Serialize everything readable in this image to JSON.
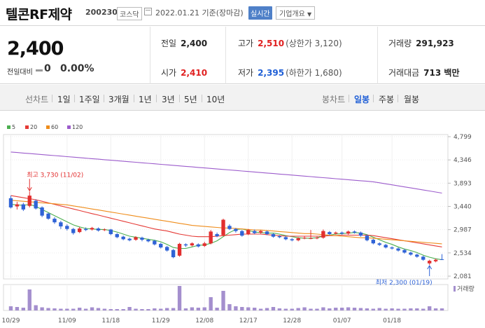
{
  "header": {
    "stock_name": "텔콘RF제약",
    "stock_code": "200230",
    "market": "코스닥",
    "date_text": "2022.01.21 기준(장마감)",
    "realtime_label": "실시간",
    "company_info_label": "기업개요"
  },
  "summary": {
    "current_price": "2,400",
    "change_label": "전일대비",
    "change_value": "0",
    "change_pct": "0.00%",
    "prev_label": "전일",
    "prev_value": "2,400",
    "high_label": "고가",
    "high_value": "2,510",
    "upper_limit": "(상한가 3,120)",
    "volume_label": "거래량",
    "volume_value": "291,923",
    "open_label": "시가",
    "open_value": "2,410",
    "low_label": "저가",
    "low_value": "2,395",
    "lower_limit": "(하한가 1,680)",
    "amount_label": "거래대금",
    "amount_value": "713 백만"
  },
  "tabs": {
    "line_chart": "선차트",
    "periods": [
      "1일",
      "1주일",
      "3개월",
      "1년",
      "3년",
      "5년",
      "10년"
    ],
    "candle_chart": "봉차트",
    "candle_types": [
      "일봉",
      "주봉",
      "월봉"
    ],
    "active_candle": "일봉"
  },
  "chart_data": {
    "type": "candlestick",
    "legend": [
      {
        "name": "5",
        "color": "#4caf50"
      },
      {
        "name": "20",
        "color": "#e53935"
      },
      {
        "name": "60",
        "color": "#ef8c1a"
      },
      {
        "name": "120",
        "color": "#9c5ccc"
      }
    ],
    "yticks": [
      "4,799",
      "4,346",
      "3,893",
      "3,440",
      "2,987",
      "2,534",
      "2,081"
    ],
    "ylim": [
      2081,
      4799
    ],
    "xticks": [
      "10/29",
      "11/09",
      "11/18",
      "11/29",
      "12/08",
      "12/17",
      "12/28",
      "01/07",
      "01/18"
    ],
    "high_note": "최고 3,730 (11/02)",
    "low_note": "최저 2,300 (01/19)",
    "volume_label": "거래량",
    "candles": [
      {
        "o": 3600,
        "c": 3420,
        "h": 3650,
        "l": 3400
      },
      {
        "o": 3440,
        "c": 3480,
        "h": 3530,
        "l": 3380
      },
      {
        "o": 3480,
        "c": 3380,
        "h": 3510,
        "l": 3350
      },
      {
        "o": 3450,
        "c": 3650,
        "h": 3730,
        "l": 3420
      },
      {
        "o": 3550,
        "c": 3400,
        "h": 3580,
        "l": 3380
      },
      {
        "o": 3420,
        "c": 3260,
        "h": 3440,
        "l": 3230
      },
      {
        "o": 3300,
        "c": 3200,
        "h": 3320,
        "l": 3180
      },
      {
        "o": 3200,
        "c": 3130,
        "h": 3230,
        "l": 3100
      },
      {
        "o": 3130,
        "c": 3050,
        "h": 3160,
        "l": 3000
      },
      {
        "o": 3060,
        "c": 3000,
        "h": 3090,
        "l": 2970
      },
      {
        "o": 3000,
        "c": 2920,
        "h": 3020,
        "l": 2890
      },
      {
        "o": 2940,
        "c": 3010,
        "h": 3040,
        "l": 2920
      },
      {
        "o": 3000,
        "c": 2980,
        "h": 3030,
        "l": 2960
      },
      {
        "o": 2990,
        "c": 3020,
        "h": 3040,
        "l": 2970
      },
      {
        "o": 3010,
        "c": 2970,
        "h": 3030,
        "l": 2950
      },
      {
        "o": 2980,
        "c": 2990,
        "h": 3010,
        "l": 2960
      },
      {
        "o": 2990,
        "c": 2900,
        "h": 3000,
        "l": 2880
      },
      {
        "o": 2900,
        "c": 2840,
        "h": 2920,
        "l": 2820
      },
      {
        "o": 2850,
        "c": 2800,
        "h": 2870,
        "l": 2780
      },
      {
        "o": 2810,
        "c": 2780,
        "h": 2830,
        "l": 2760
      },
      {
        "o": 2790,
        "c": 2840,
        "h": 2860,
        "l": 2770
      },
      {
        "o": 2830,
        "c": 2790,
        "h": 2850,
        "l": 2760
      },
      {
        "o": 2790,
        "c": 2760,
        "h": 2810,
        "l": 2740
      },
      {
        "o": 2770,
        "c": 2700,
        "h": 2790,
        "l": 2680
      },
      {
        "o": 2710,
        "c": 2640,
        "h": 2730,
        "l": 2620
      },
      {
        "o": 2650,
        "c": 2580,
        "h": 2670,
        "l": 2560
      },
      {
        "o": 2590,
        "c": 2450,
        "h": 2610,
        "l": 2430
      },
      {
        "o": 2480,
        "c": 2710,
        "h": 2730,
        "l": 2460
      },
      {
        "o": 2700,
        "c": 2680,
        "h": 2720,
        "l": 2650
      },
      {
        "o": 2680,
        "c": 2720,
        "h": 2740,
        "l": 2660
      },
      {
        "o": 2700,
        "c": 2660,
        "h": 2720,
        "l": 2640
      },
      {
        "o": 2670,
        "c": 2720,
        "h": 2750,
        "l": 2650
      },
      {
        "o": 2720,
        "c": 2950,
        "h": 2980,
        "l": 2700
      },
      {
        "o": 2900,
        "c": 2860,
        "h": 2930,
        "l": 2840
      },
      {
        "o": 2880,
        "c": 3180,
        "h": 3200,
        "l": 2860
      },
      {
        "o": 3060,
        "c": 3000,
        "h": 3090,
        "l": 2980
      },
      {
        "o": 3000,
        "c": 2960,
        "h": 3020,
        "l": 2930
      },
      {
        "o": 2960,
        "c": 2870,
        "h": 2980,
        "l": 2850
      },
      {
        "o": 2900,
        "c": 2980,
        "h": 3000,
        "l": 2880
      },
      {
        "o": 2960,
        "c": 2920,
        "h": 2990,
        "l": 2900
      },
      {
        "o": 2930,
        "c": 2960,
        "h": 2980,
        "l": 2910
      },
      {
        "o": 2950,
        "c": 2900,
        "h": 2970,
        "l": 2880
      },
      {
        "o": 2900,
        "c": 2850,
        "h": 2920,
        "l": 2830
      },
      {
        "o": 2860,
        "c": 2840,
        "h": 2880,
        "l": 2820
      },
      {
        "o": 2840,
        "c": 2800,
        "h": 2860,
        "l": 2780
      },
      {
        "o": 2800,
        "c": 2780,
        "h": 2820,
        "l": 2760
      },
      {
        "o": 2780,
        "c": 2820,
        "h": 2840,
        "l": 2760
      },
      {
        "o": 2820,
        "c": 2830,
        "h": 2860,
        "l": 2800
      },
      {
        "o": 2820,
        "c": 2820,
        "h": 2980,
        "l": 2800
      },
      {
        "o": 2820,
        "c": 2830,
        "h": 2850,
        "l": 2800
      },
      {
        "o": 2830,
        "c": 2960,
        "h": 2990,
        "l": 2810
      },
      {
        "o": 2940,
        "c": 2900,
        "h": 2960,
        "l": 2880
      },
      {
        "o": 2910,
        "c": 2930,
        "h": 2950,
        "l": 2890
      },
      {
        "o": 2930,
        "c": 2910,
        "h": 2950,
        "l": 2890
      },
      {
        "o": 2910,
        "c": 2950,
        "h": 2970,
        "l": 2890
      },
      {
        "o": 2950,
        "c": 2930,
        "h": 2970,
        "l": 2910
      },
      {
        "o": 2930,
        "c": 2870,
        "h": 2950,
        "l": 2850
      },
      {
        "o": 2870,
        "c": 2780,
        "h": 2890,
        "l": 2760
      },
      {
        "o": 2790,
        "c": 2720,
        "h": 2810,
        "l": 2700
      },
      {
        "o": 2720,
        "c": 2690,
        "h": 2740,
        "l": 2670
      },
      {
        "o": 2690,
        "c": 2640,
        "h": 2710,
        "l": 2620
      },
      {
        "o": 2640,
        "c": 2620,
        "h": 2660,
        "l": 2600
      },
      {
        "o": 2620,
        "c": 2580,
        "h": 2640,
        "l": 2560
      },
      {
        "o": 2590,
        "c": 2540,
        "h": 2610,
        "l": 2520
      },
      {
        "o": 2540,
        "c": 2500,
        "h": 2560,
        "l": 2480
      },
      {
        "o": 2500,
        "c": 2460,
        "h": 2520,
        "l": 2440
      },
      {
        "o": 2460,
        "c": 2400,
        "h": 2480,
        "l": 2380
      },
      {
        "o": 2330,
        "c": 2380,
        "h": 2400,
        "l": 2300
      },
      {
        "o": 2370,
        "c": 2400,
        "h": 2420,
        "l": 2350
      },
      {
        "o": 2410,
        "c": 2400,
        "h": 2510,
        "l": 2395
      }
    ],
    "ma5": [
      3480,
      3470,
      3460,
      3480,
      3440,
      3380,
      3320,
      3260,
      3200,
      3140,
      3080,
      3040,
      3010,
      3000,
      2990,
      2990,
      2970,
      2940,
      2900,
      2860,
      2840,
      2820,
      2800,
      2780,
      2750,
      2700,
      2640,
      2620,
      2620,
      2650,
      2680,
      2690,
      2720,
      2770,
      2850,
      2930,
      2990,
      3000,
      2970,
      2940,
      2930,
      2920,
      2920,
      2900,
      2870,
      2850,
      2830,
      2820,
      2820,
      2830,
      2860,
      2880,
      2900,
      2910,
      2920,
      2930,
      2920,
      2890,
      2840,
      2790,
      2740,
      2700,
      2650,
      2610,
      2580,
      2540,
      2490,
      2450,
      2420,
      2400
    ],
    "ma20": [
      3650,
      3630,
      3610,
      3590,
      3570,
      3540,
      3510,
      3480,
      3450,
      3420,
      3390,
      3360,
      3330,
      3300,
      3270,
      3240,
      3210,
      3180,
      3150,
      3120,
      3090,
      3060,
      3030,
      3000,
      2980,
      2960,
      2930,
      2900,
      2880,
      2860,
      2850,
      2850,
      2850,
      2860,
      2870,
      2880,
      2890,
      2900,
      2900,
      2900,
      2900,
      2890,
      2880,
      2870,
      2860,
      2860,
      2860,
      2860,
      2860,
      2860,
      2860,
      2870,
      2870,
      2880,
      2880,
      2880,
      2880,
      2880,
      2870,
      2850,
      2830,
      2810,
      2790,
      2770,
      2750,
      2730,
      2710,
      2690,
      2670,
      2650
    ],
    "ma60": [
      3560,
      3550,
      3540,
      3530,
      3520,
      3510,
      3500,
      3490,
      3480,
      3470,
      3450,
      3430,
      3410,
      3390,
      3370,
      3350,
      3330,
      3310,
      3290,
      3270,
      3250,
      3230,
      3210,
      3190,
      3170,
      3150,
      3130,
      3110,
      3090,
      3070,
      3060,
      3050,
      3040,
      3030,
      3020,
      3020,
      3010,
      3000,
      2990,
      2980,
      2980,
      2970,
      2960,
      2950,
      2940,
      2930,
      2920,
      2910,
      2910,
      2900,
      2890,
      2880,
      2870,
      2860,
      2850,
      2840,
      2830,
      2830,
      2820,
      2810,
      2800,
      2790,
      2780,
      2770,
      2760,
      2750,
      2740,
      2730,
      2720,
      2710
    ],
    "ma120": [
      4500,
      4490,
      4480,
      4470,
      4460,
      4450,
      4440,
      4430,
      4420,
      4410,
      4400,
      4390,
      4380,
      4370,
      4360,
      4350,
      4340,
      4330,
      4320,
      4310,
      4300,
      4290,
      4280,
      4270,
      4260,
      4250,
      4240,
      4230,
      4220,
      4210,
      4200,
      4190,
      4180,
      4170,
      4160,
      4150,
      4140,
      4130,
      4120,
      4110,
      4100,
      4090,
      4080,
      4070,
      4060,
      4050,
      4040,
      4030,
      4020,
      4010,
      4000,
      3990,
      3980,
      3970,
      3960,
      3950,
      3940,
      3930,
      3920,
      3900,
      3880,
      3860,
      3840,
      3820,
      3800,
      3780,
      3760,
      3740,
      3720,
      3700
    ],
    "volume": [
      12,
      10,
      8,
      60,
      15,
      9,
      7,
      6,
      5,
      5,
      5,
      8,
      5,
      9,
      7,
      5,
      4,
      4,
      4,
      10,
      5,
      4,
      4,
      6,
      5,
      7,
      7,
      70,
      6,
      9,
      8,
      9,
      38,
      8,
      56,
      18,
      12,
      10,
      9,
      8,
      5,
      7,
      10,
      6,
      5,
      5,
      7,
      9,
      5,
      5,
      9,
      6,
      8,
      8,
      9,
      8,
      7,
      6,
      5,
      7,
      5,
      6,
      5,
      5,
      6,
      6,
      5,
      12,
      6,
      6
    ]
  }
}
